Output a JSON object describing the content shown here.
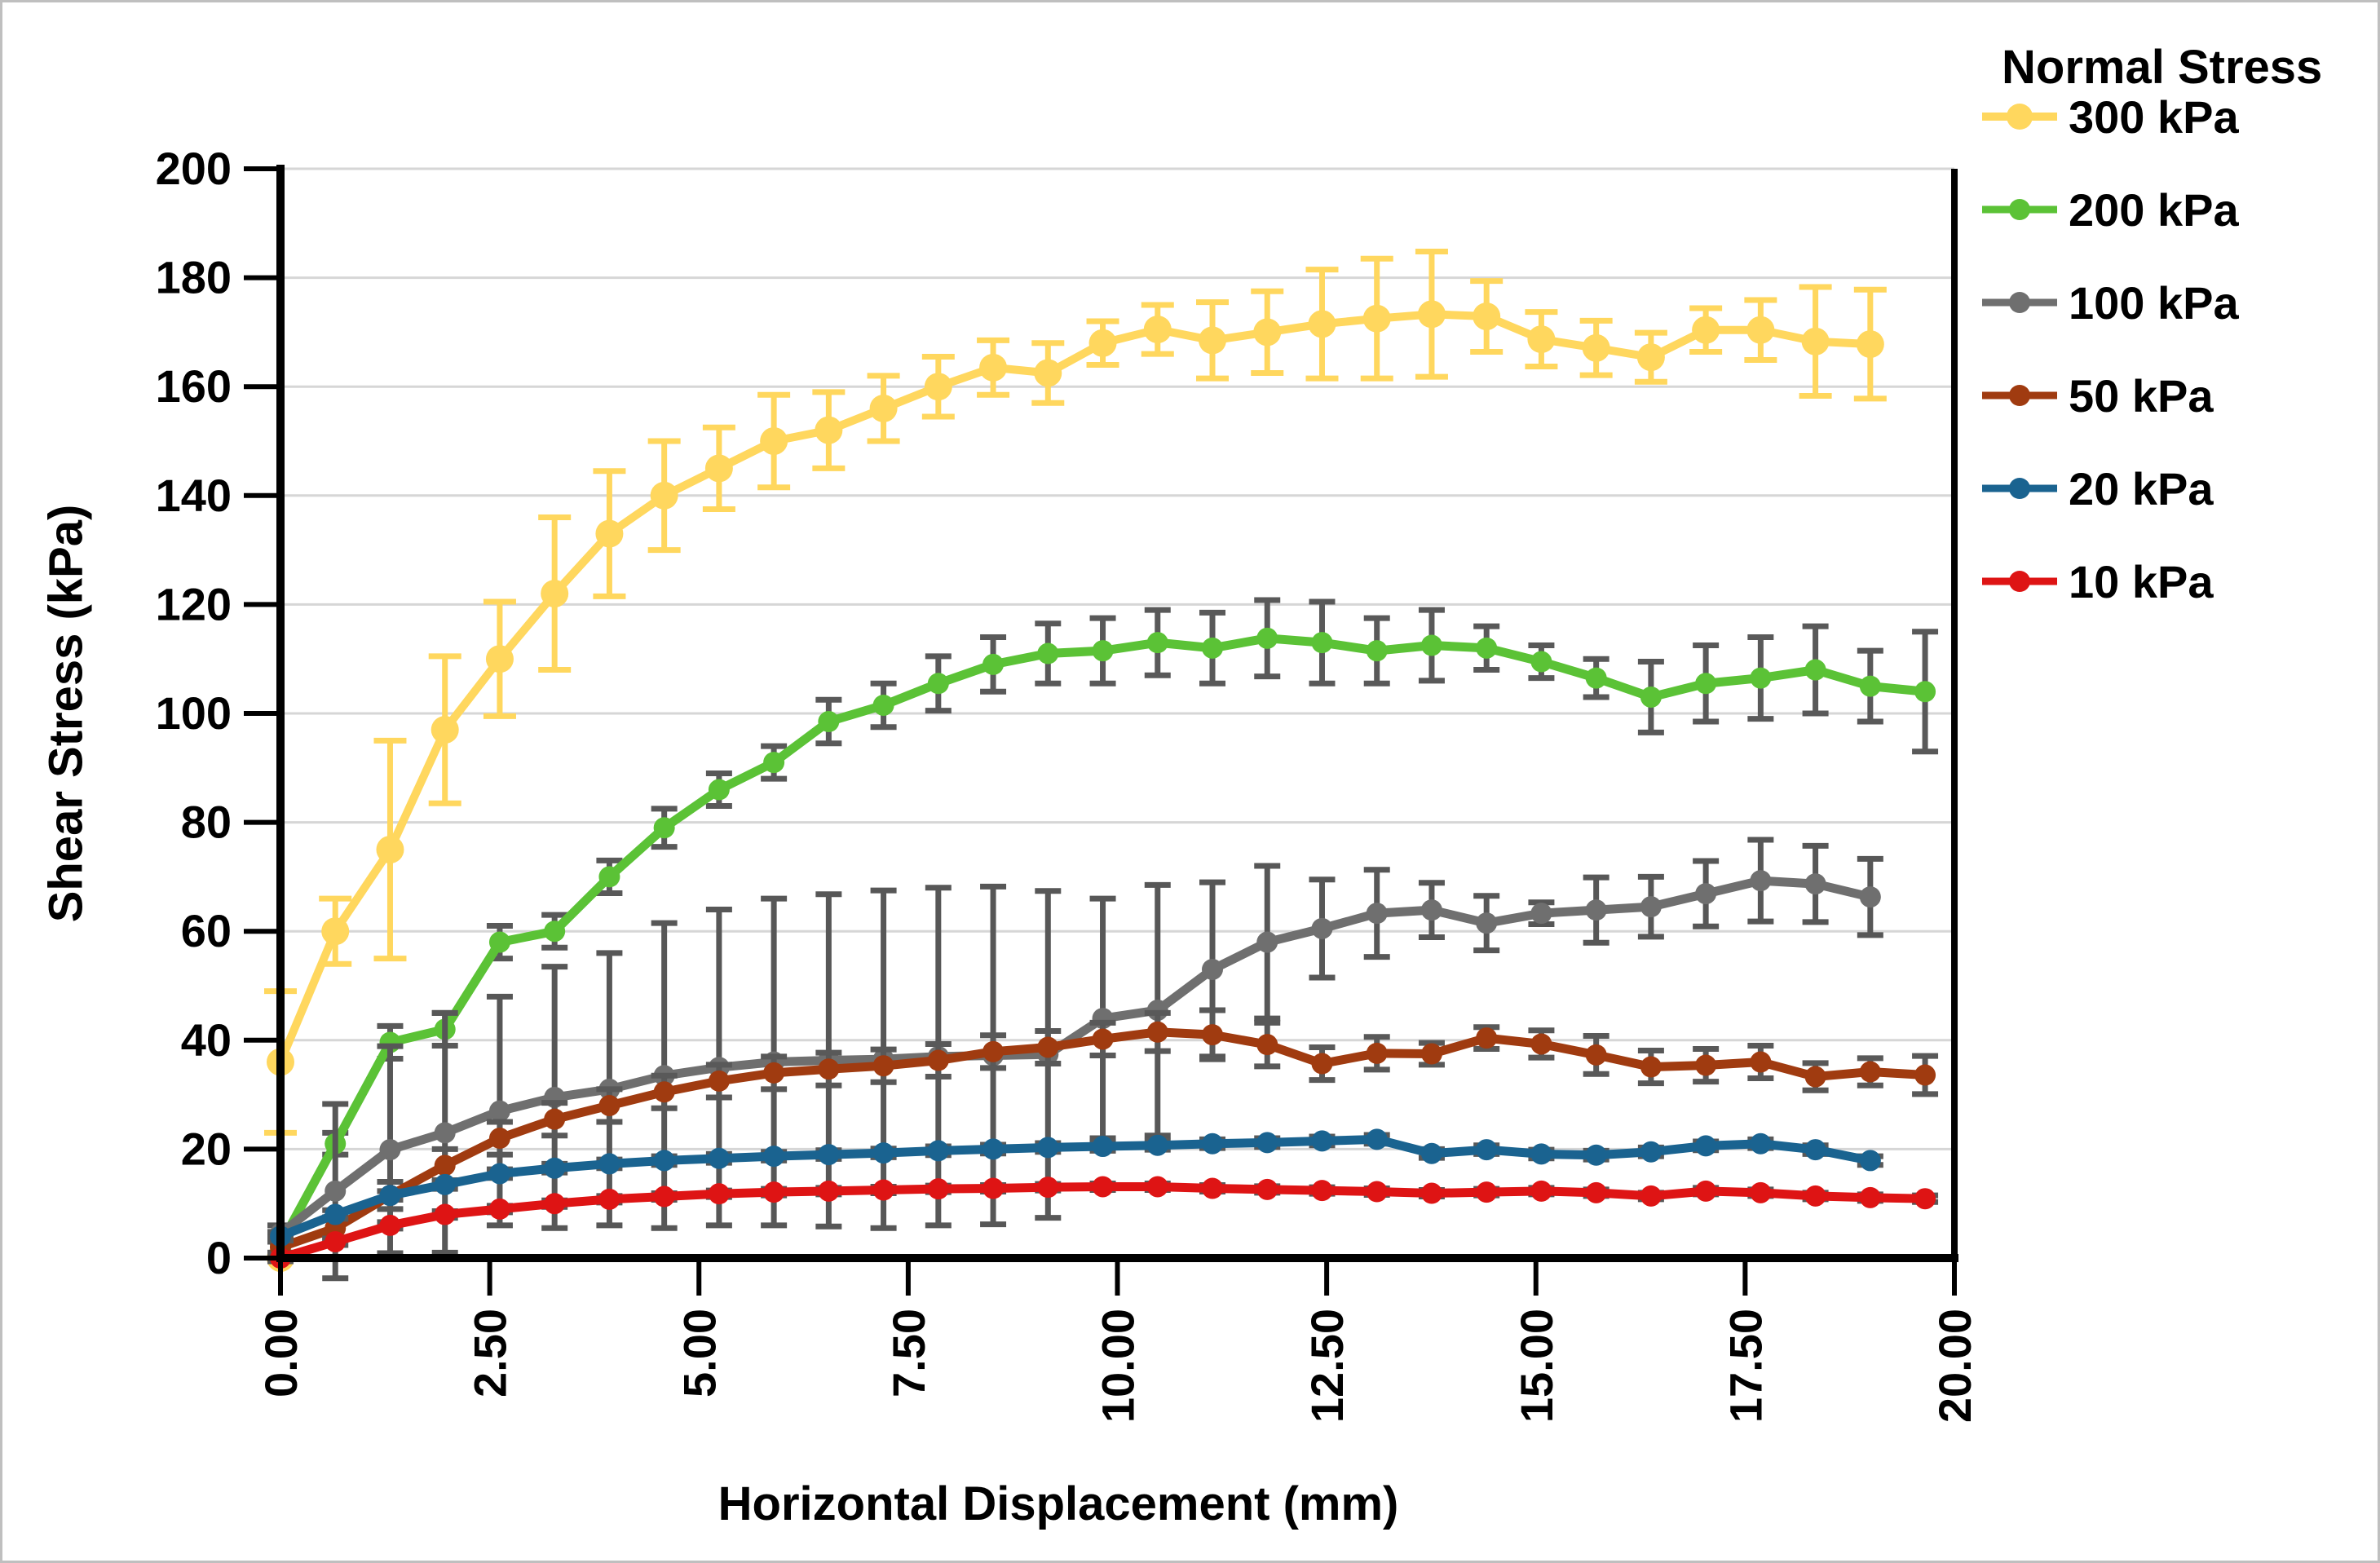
{
  "figure": {
    "background": "#FFFFFF",
    "border_color": "#BFBFBF"
  },
  "chart_data": {
    "type": "line",
    "title": "",
    "xlabel": "Horizontal Displacement (mm)",
    "ylabel": "Shear Stress (kPa)",
    "legend_title": "Normal Stress",
    "legend_position": "right",
    "xlim": [
      0,
      20
    ],
    "ylim": [
      0,
      200
    ],
    "grid": "horizontal",
    "x_ticks": [
      0,
      2.5,
      5,
      7.5,
      10,
      12.5,
      15,
      17.5,
      20
    ],
    "x_tick_labels": [
      "0.00",
      "2.50",
      "5.00",
      "7.50",
      "10.00",
      "12.50",
      "15.00",
      "17.50",
      "20.00"
    ],
    "y_ticks": [
      0,
      20,
      40,
      60,
      80,
      100,
      120,
      140,
      160,
      180,
      200
    ],
    "x_start": 0,
    "x_step": 0.655,
    "style": {
      "grid_color": "#D6D6D6",
      "axis_color": "#000000",
      "text_color": "#000000",
      "error_bar_gray": "#595959"
    },
    "series": [
      {
        "label": "300 kPa",
        "color": "#FFD75E",
        "error_color": "#FFD75E",
        "start_at_zero": true,
        "y": [
          36,
          60,
          75,
          97,
          110,
          122,
          133,
          140,
          145,
          150,
          152,
          156,
          160,
          163.5,
          162.5,
          168,
          170.5,
          168.5,
          170,
          171.5,
          172.5,
          173.3,
          172.9,
          168.7,
          167.1,
          165.4,
          170.4,
          170.4,
          168.3,
          167.8
        ],
        "err": [
          13,
          6,
          20,
          13.5,
          10.5,
          14,
          11.5,
          10,
          7.5,
          8.5,
          7,
          6,
          5.5,
          5,
          5.5,
          4,
          4.5,
          7,
          7.5,
          10,
          11,
          11.5,
          6.5,
          5,
          5,
          4.5,
          4,
          5.5,
          10,
          10
        ]
      },
      {
        "label": "200 kPa",
        "color": "#5BC236",
        "error_color": "#595959",
        "y": [
          2.5,
          21,
          39.6,
          42,
          58,
          60,
          70,
          79,
          86,
          91,
          98.5,
          101.5,
          105.5,
          109,
          111,
          111.5,
          113,
          112,
          113.8,
          113,
          111.5,
          112.5,
          112,
          109.5,
          106.5,
          103,
          105.5,
          106.5,
          108,
          105,
          104
        ],
        "err": [
          1.5,
          2,
          3,
          3,
          3,
          3,
          3,
          3.5,
          3,
          3,
          4,
          4,
          5,
          5,
          5.5,
          6,
          6,
          6.5,
          7,
          7.5,
          6,
          6.5,
          4,
          3,
          3.5,
          6.5,
          7,
          7.5,
          8,
          6.5,
          11
        ]
      },
      {
        "label": "100 kPa",
        "color": "#6F6F6F",
        "error_color": "#575757",
        "y": [
          4.5,
          12.3,
          19.9,
          23,
          27,
          29.5,
          31,
          33.5,
          35,
          36,
          36.3,
          36.5,
          37,
          37.2,
          37.4,
          44,
          45.5,
          53,
          58,
          60.5,
          63.3,
          63.9,
          61.5,
          63.3,
          63.9,
          64.5,
          66.9,
          69.3,
          68.7,
          66.3
        ],
        "err": [
          1.5,
          16,
          19,
          22,
          21,
          24,
          25,
          28,
          29,
          30,
          30.5,
          31,
          31,
          31,
          30,
          22,
          23,
          16,
          14,
          9,
          8,
          5,
          5,
          2,
          6,
          5.5,
          6,
          7.5,
          7,
          7
        ]
      },
      {
        "label": "50 kPa",
        "color": "#A03B10",
        "error_color": "#595959",
        "y": [
          2,
          5.5,
          11.5,
          17,
          22,
          25.5,
          28,
          30.5,
          32.5,
          34,
          34.7,
          35.3,
          36.3,
          37.9,
          38.7,
          40.2,
          41.5,
          41,
          39.2,
          35.7,
          37.6,
          37.5,
          40.4,
          39.3,
          37.3,
          35.1,
          35.4,
          36,
          33.3,
          34.2,
          33.6
        ],
        "err": [
          1,
          2,
          2.5,
          3,
          3,
          3,
          3,
          3,
          3,
          3,
          3,
          3,
          3,
          3,
          3,
          3,
          3.5,
          4.5,
          4,
          3,
          3,
          2,
          2,
          2.5,
          3.5,
          3,
          3,
          3,
          2.5,
          2.5,
          3.5
        ]
      },
      {
        "label": "20 kPa",
        "color": "#1A6390",
        "error_color": "#595959",
        "y": [
          4,
          8,
          11.5,
          13.5,
          15.5,
          16.5,
          17.3,
          17.9,
          18.3,
          18.7,
          19,
          19.3,
          19.7,
          20,
          20.3,
          20.5,
          20.7,
          21,
          21.2,
          21.5,
          21.8,
          19.2,
          19.9,
          19.1,
          18.9,
          19.5,
          20.6,
          21,
          19.9,
          17.9
        ],
        "err": 0.8
      },
      {
        "label": "10 kPa",
        "color": "#DE1414",
        "error_color": "#595959",
        "y": [
          0,
          3,
          6,
          8,
          9,
          10,
          10.8,
          11.3,
          11.8,
          12.1,
          12.3,
          12.5,
          12.7,
          12.8,
          13,
          13.1,
          13.1,
          12.8,
          12.6,
          12.4,
          12.2,
          11.9,
          12.1,
          12.3,
          12,
          11.4,
          12.3,
          12,
          11.4,
          11.1,
          10.9
        ],
        "err": 0.6
      }
    ]
  }
}
